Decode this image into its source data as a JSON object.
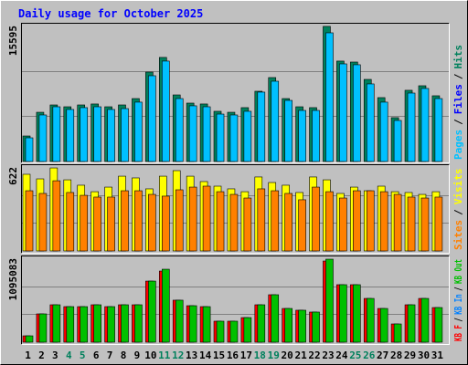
{
  "title": "Daily usage for October 2025",
  "separator": "/",
  "chart_data": [
    {
      "type": "bar",
      "bars_from": "last",
      "ylim": [
        0,
        15595
      ],
      "yticks": [
        15595
      ],
      "series": [
        {
          "name": "Pages",
          "color": "#00c0ff",
          "values": [
            2720,
            5340,
            6280,
            5970,
            6180,
            6280,
            5970,
            6070,
            6810,
            9840,
            11520,
            7220,
            6390,
            6280,
            5440,
            5340,
            5760,
            7960,
            9210,
            7010,
            5860,
            5860,
            14760,
            11200,
            11100,
            8900,
            6810,
            4710,
            7850,
            8380,
            7220
          ]
        },
        {
          "name": "Files",
          "color": "#0000ff",
          "values": [
            null,
            null,
            null,
            null,
            null,
            null,
            null,
            null,
            null,
            null,
            null,
            null,
            null,
            null,
            null,
            null,
            null,
            null,
            null,
            null,
            null,
            null,
            null,
            null,
            null,
            null,
            null,
            null,
            null,
            null,
            null
          ]
        },
        {
          "name": "Hits",
          "color": "#00805c",
          "values": [
            2930,
            5650,
            6490,
            6280,
            6490,
            6600,
            6280,
            6490,
            7220,
            10260,
            11940,
            7640,
            6700,
            6600,
            5760,
            5650,
            6180,
            8060,
            9630,
            7220,
            6280,
            6180,
            15500,
            11520,
            11410,
            9420,
            7330,
            5030,
            8170,
            8690,
            7540
          ]
        }
      ]
    },
    {
      "type": "bar",
      "bars_from": "last",
      "ylim": [
        0,
        622
      ],
      "yticks": [
        622
      ],
      "series": [
        {
          "name": "Sites",
          "color": "#ff8000",
          "values": [
            446,
            426,
            520,
            433,
            412,
            399,
            399,
            446,
            446,
            419,
            406,
            453,
            473,
            480,
            439,
            419,
            392,
            460,
            446,
            426,
            379,
            473,
            439,
            392,
            446,
            446,
            439,
            419,
            399,
            392,
            399
          ]
        },
        {
          "name": "Visits",
          "color": "#ffff00",
          "values": [
            568,
            534,
            615,
            527,
            487,
            439,
            473,
            554,
            541,
            460,
            554,
            595,
            554,
            514,
            480,
            460,
            439,
            548,
            507,
            487,
            433,
            548,
            527,
            426,
            473,
            446,
            480,
            439,
            433,
            419,
            439
          ]
        }
      ]
    },
    {
      "type": "bar",
      "bars_from": "first",
      "ylim": [
        0,
        1095083
      ],
      "yticks": [
        1095083
      ],
      "categories": [
        "1",
        "2",
        "3",
        "4",
        "5",
        "6",
        "7",
        "8",
        "9",
        "10",
        "11",
        "12",
        "13",
        "14",
        "15",
        "16",
        "17",
        "18",
        "19",
        "20",
        "21",
        "22",
        "23",
        "24",
        "25",
        "26",
        "27",
        "28",
        "29",
        "30",
        "31"
      ],
      "category_colors": [
        "#000000",
        "#000000",
        "#000000",
        "#00805c",
        "#00805c",
        "#000000",
        "#000000",
        "#000000",
        "#000000",
        "#000000",
        "#00805c",
        "#00805c",
        "#000000",
        "#000000",
        "#000000",
        "#000000",
        "#000000",
        "#00805c",
        "#00805c",
        "#000000",
        "#000000",
        "#000000",
        "#000000",
        "#000000",
        "#00805c",
        "#00805c",
        "#000000",
        "#000000",
        "#000000",
        "#000000",
        "#000000"
      ],
      "series": [
        {
          "name": "KB F",
          "color": "#ff0000",
          "values": [
            83000,
            369000,
            488000,
            464000,
            464000,
            488000,
            464000,
            488000,
            488000,
            797000,
            928000,
            548000,
            476000,
            464000,
            274000,
            274000,
            321000,
            488000,
            619000,
            440000,
            417000,
            393000,
            1059000,
            750000,
            750000,
            571000,
            440000,
            238000,
            488000,
            571000,
            452000
          ]
        },
        {
          "name": "KB In",
          "color": "#0080ff",
          "values": [
            null,
            null,
            null,
            null,
            null,
            null,
            null,
            null,
            null,
            null,
            null,
            null,
            null,
            null,
            null,
            null,
            null,
            null,
            null,
            null,
            null,
            null,
            null,
            null,
            null,
            null,
            null,
            null,
            null,
            null,
            null
          ]
        },
        {
          "name": "KB Out",
          "color": "#00c000",
          "values": [
            83000,
            369000,
            488000,
            464000,
            464000,
            488000,
            464000,
            488000,
            488000,
            797000,
            952000,
            548000,
            476000,
            464000,
            274000,
            274000,
            321000,
            488000,
            619000,
            440000,
            417000,
            393000,
            1083000,
            750000,
            750000,
            571000,
            440000,
            238000,
            488000,
            571000,
            452000
          ]
        }
      ]
    }
  ]
}
